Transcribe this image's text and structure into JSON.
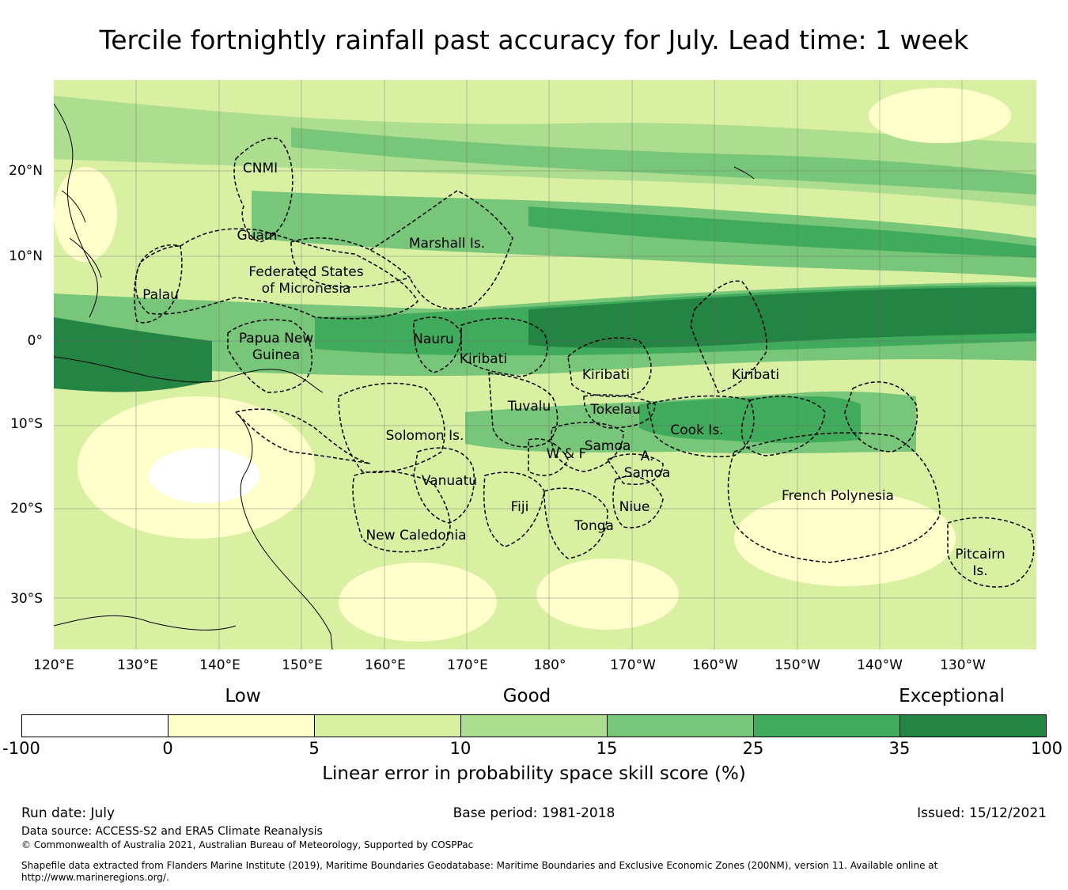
{
  "title": "Tercile fortnightly rainfall past accuracy for July. Lead time: 1 week",
  "map": {
    "lon_labels": [
      "120°E",
      "130°E",
      "140°E",
      "150°E",
      "160°E",
      "170°E",
      "180°",
      "170°W",
      "160°W",
      "150°W",
      "140°W",
      "130°W"
    ],
    "lat_labels": [
      "20°N",
      "10°N",
      "0°",
      "10°S",
      "20°S",
      "30°S"
    ],
    "regions": [
      {
        "name": "CNMI",
        "lines": [
          "CNMI"
        ]
      },
      {
        "name": "Guam",
        "lines": [
          "Guam"
        ]
      },
      {
        "name": "Marshall Is.",
        "lines": [
          "Marshall Is."
        ]
      },
      {
        "name": "Federated States of Micronesia",
        "lines": [
          "Federated States",
          "of Micronesia"
        ]
      },
      {
        "name": "Palau",
        "lines": [
          "Palau"
        ]
      },
      {
        "name": "Papua New Guinea",
        "lines": [
          "Papua New",
          "Guinea"
        ]
      },
      {
        "name": "Nauru",
        "lines": [
          "Nauru"
        ]
      },
      {
        "name": "Kiribati (Gilbert)",
        "lines": [
          "Kiribati"
        ]
      },
      {
        "name": "Kiribati (Phoenix)",
        "lines": [
          "Kiribati"
        ]
      },
      {
        "name": "Kiribati (Line)",
        "lines": [
          "Kiribati"
        ]
      },
      {
        "name": "Tuvalu",
        "lines": [
          "Tuvalu"
        ]
      },
      {
        "name": "Tokelau",
        "lines": [
          "Tokelau"
        ]
      },
      {
        "name": "Cook Is.",
        "lines": [
          "Cook Is."
        ]
      },
      {
        "name": "Solomon Is.",
        "lines": [
          "Solomon Is."
        ]
      },
      {
        "name": "Samoa",
        "lines": [
          "Samoa"
        ]
      },
      {
        "name": "W & F",
        "lines": [
          "W & F"
        ]
      },
      {
        "name": "A. Samoa",
        "lines": [
          "A.",
          "Samoa"
        ]
      },
      {
        "name": "Vanuatu",
        "lines": [
          "Vanuatu"
        ]
      },
      {
        "name": "Fiji",
        "lines": [
          "Fiji"
        ]
      },
      {
        "name": "Niue",
        "lines": [
          "Niue"
        ]
      },
      {
        "name": "Tonga",
        "lines": [
          "Tonga"
        ]
      },
      {
        "name": "French Polynesia",
        "lines": [
          "French Polynesia"
        ]
      },
      {
        "name": "New Caledonia",
        "lines": [
          "New Caledonia"
        ]
      },
      {
        "name": "Pitcairn Is.",
        "lines": [
          "Pitcairn",
          "Is."
        ]
      }
    ]
  },
  "colorbar": {
    "categories": [
      "Low",
      "Good",
      "Exceptional"
    ],
    "ticks": [
      "-100",
      "0",
      "5",
      "10",
      "15",
      "25",
      "35",
      "100"
    ],
    "colors": [
      "#ffffff",
      "#ffffcc",
      "#d9f0a3",
      "#addd8e",
      "#78c679",
      "#41ab5d",
      "#238443"
    ],
    "label": "Linear error in probability space skill score (%)"
  },
  "footer": {
    "run_date": "Run date: July",
    "base_period": "Base period: 1981-2018",
    "issued": "Issued: 15/12/2021",
    "data_source": "Data source: ACCESS-S2 and ERA5 Climate Reanalysis",
    "copyright": "© Commonwealth of Australia 2021, Australian Bureau of Meteorology, Supported by COSPPac",
    "shapefile_line1": "Shapefile data extracted from Flanders Marine Institute (2019), Maritime Boundaries Geodatabase: Maritime Boundaries and Exclusive Economic Zones (200NM), version 11. Available online at",
    "shapefile_line2": "http://www.marineregions.org/."
  }
}
